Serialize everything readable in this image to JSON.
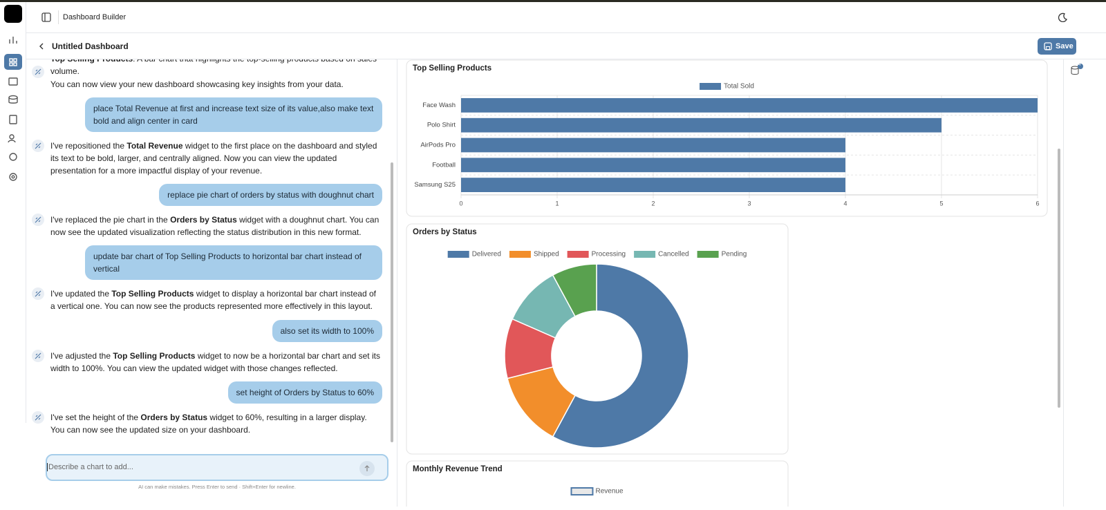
{
  "app": {
    "header_title": "Dashboard Builder",
    "dashboard_title": "Untitled Dashboard",
    "save_label": "Save",
    "badge": "4"
  },
  "chat": {
    "messages": [
      {
        "role": "assistant",
        "segments": [
          {
            "text": "Top Selling Products",
            "bold": true
          },
          {
            "text": ": A bar chart that highlights the top-selling products based on sales volume."
          }
        ]
      },
      {
        "role": "assistant",
        "segments": [
          {
            "text": "You can now view your new dashboard showcasing key insights from your data."
          }
        ]
      },
      {
        "role": "user",
        "segments": [
          {
            "text": "place Total Revenue at first and increase text size of its value,also make text bold and align center in card"
          }
        ]
      },
      {
        "role": "assistant",
        "segments": [
          {
            "text": "I've repositioned the "
          },
          {
            "text": "Total Revenue",
            "bold": true
          },
          {
            "text": " widget to the first place on the dashboard and styled its text to be bold, larger, and centrally aligned. Now you can view the updated presentation for a more impactful display of your revenue."
          }
        ]
      },
      {
        "role": "user",
        "segments": [
          {
            "text": "replace pie chart of orders by status with doughnut chart"
          }
        ]
      },
      {
        "role": "assistant",
        "segments": [
          {
            "text": "I've replaced the pie chart in the "
          },
          {
            "text": "Orders by Status",
            "bold": true
          },
          {
            "text": " widget with a doughnut chart. You can now see the updated visualization reflecting the status distribution in this new format."
          }
        ]
      },
      {
        "role": "user",
        "segments": [
          {
            "text": "update bar chart of Top Selling Products to horizontal bar chart instead of vertical"
          }
        ]
      },
      {
        "role": "assistant",
        "segments": [
          {
            "text": "I've updated the "
          },
          {
            "text": "Top Selling Products",
            "bold": true
          },
          {
            "text": " widget to display a horizontal bar chart instead of a vertical one. You can now see the products represented more effectively in this layout."
          }
        ]
      },
      {
        "role": "user",
        "segments": [
          {
            "text": "also set its width to 100%"
          }
        ]
      },
      {
        "role": "assistant",
        "segments": [
          {
            "text": "I've adjusted the "
          },
          {
            "text": "Top Selling Products",
            "bold": true
          },
          {
            "text": " widget to now be a horizontal bar chart and set its width to 100%. You can view the updated widget with those changes reflected."
          }
        ]
      },
      {
        "role": "user",
        "segments": [
          {
            "text": "set height of Orders by Status to 60%"
          }
        ]
      },
      {
        "role": "assistant",
        "segments": [
          {
            "text": "I've set the height of the "
          },
          {
            "text": "Orders by Status",
            "bold": true
          },
          {
            "text": " widget to 60%, resulting in a larger display. You can now see the updated size on your dashboard."
          }
        ]
      }
    ],
    "input_placeholder": "Describe a chart to add...",
    "footer_note": "AI can make mistakes. Press Enter to send · Shift+Enter for newline."
  },
  "chart_data": [
    {
      "type": "bar",
      "orientation": "horizontal",
      "title": "Top Selling Products",
      "categories": [
        "Face Wash",
        "Polo Shirt",
        "AirPods Pro",
        "Football",
        "Samsung S25"
      ],
      "series": [
        {
          "name": "Total Sold",
          "color": "#4e79a7",
          "values": [
            6,
            5,
            4,
            4,
            4
          ]
        }
      ],
      "xlim": [
        0,
        6
      ],
      "xticks": [
        0,
        1,
        2,
        3,
        4,
        5,
        6
      ],
      "grid": true,
      "legend": "top"
    },
    {
      "type": "doughnut",
      "title": "Orders by Status",
      "categories": [
        "Delivered",
        "Shipped",
        "Processing",
        "Cancelled",
        "Pending"
      ],
      "values": [
        22,
        5,
        4,
        4,
        3
      ],
      "colors": [
        "#4e79a7",
        "#f28e2b",
        "#e15759",
        "#76b7b2",
        "#59a14f"
      ],
      "legend": "top"
    },
    {
      "type": "line",
      "title": "Monthly Revenue Trend",
      "series": [
        {
          "name": "Revenue",
          "color": "#4e79a7"
        }
      ],
      "legend": "top"
    }
  ]
}
